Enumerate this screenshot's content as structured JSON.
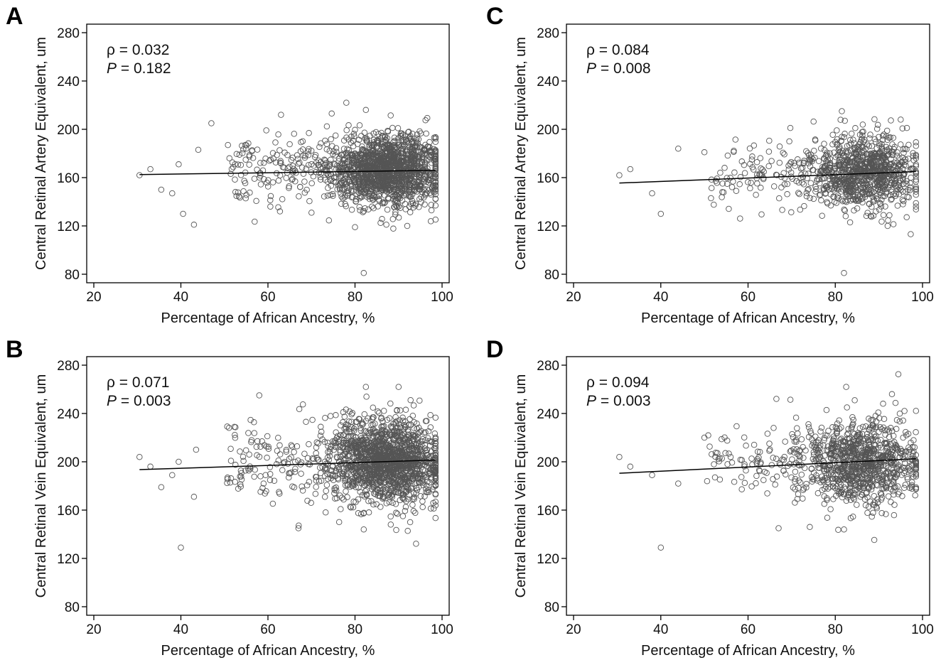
{
  "chart_data": [
    {
      "panel": "A",
      "type": "scatter",
      "xlabel": "Percentage of African Ancestry, %",
      "ylabel": "Central Retinal Artery Equivalent, um",
      "xlim": [
        20,
        100
      ],
      "ylim": [
        80,
        280
      ],
      "xticks": [
        20,
        40,
        60,
        80,
        100
      ],
      "yticks": [
        80,
        120,
        160,
        200,
        240,
        280
      ],
      "annotation": {
        "rho": "ρ = 0.032",
        "p_label": "P",
        "p_rest": " = 0.182"
      },
      "fit_line": {
        "x": [
          30.5,
          98.5
        ],
        "y": [
          162.5,
          166.0
        ]
      },
      "point_cloud": {
        "approx_n": 1600,
        "x_center": 87,
        "x_min": 30.5,
        "x_max": 98.5,
        "y_center": 166,
        "y_sd": 15
      },
      "outliers": [
        {
          "x": 30.5,
          "y": 162
        },
        {
          "x": 33,
          "y": 167
        },
        {
          "x": 35.5,
          "y": 150
        },
        {
          "x": 38,
          "y": 147
        },
        {
          "x": 39.5,
          "y": 171
        },
        {
          "x": 40.5,
          "y": 130
        },
        {
          "x": 43,
          "y": 121
        },
        {
          "x": 44,
          "y": 183
        },
        {
          "x": 47,
          "y": 205
        },
        {
          "x": 55,
          "y": 184
        },
        {
          "x": 63,
          "y": 212
        },
        {
          "x": 82,
          "y": 81
        },
        {
          "x": 78,
          "y": 222
        },
        {
          "x": 82.5,
          "y": 216
        },
        {
          "x": 80,
          "y": 119
        },
        {
          "x": 92,
          "y": 120
        }
      ]
    },
    {
      "panel": "B",
      "type": "scatter",
      "xlabel": "Percentage of African Ancestry, %",
      "ylabel": "Central Retinal Vein Equivalent, um",
      "xlim": [
        20,
        100
      ],
      "ylim": [
        80,
        280
      ],
      "xticks": [
        20,
        40,
        60,
        80,
        100
      ],
      "yticks": [
        80,
        120,
        160,
        200,
        240,
        280
      ],
      "annotation": {
        "rho": "ρ = 0.071",
        "p_label": "P",
        "p_rest": " = 0.003"
      },
      "fit_line": {
        "x": [
          30.5,
          98.5
        ],
        "y": [
          193.5,
          201.5
        ]
      },
      "point_cloud": {
        "approx_n": 1600,
        "x_center": 87,
        "x_min": 30.5,
        "x_max": 98.5,
        "y_center": 200,
        "y_sd": 17
      },
      "outliers": [
        {
          "x": 30.5,
          "y": 204
        },
        {
          "x": 33,
          "y": 196
        },
        {
          "x": 35.5,
          "y": 179
        },
        {
          "x": 38,
          "y": 189
        },
        {
          "x": 39.5,
          "y": 200
        },
        {
          "x": 40,
          "y": 129
        },
        {
          "x": 43,
          "y": 171
        },
        {
          "x": 43.5,
          "y": 210
        },
        {
          "x": 58,
          "y": 255
        },
        {
          "x": 67,
          "y": 145
        },
        {
          "x": 82.5,
          "y": 262
        },
        {
          "x": 82,
          "y": 144
        },
        {
          "x": 90,
          "y": 262
        },
        {
          "x": 91,
          "y": 155
        }
      ]
    },
    {
      "panel": "C",
      "type": "scatter",
      "xlabel": "Percentage of African Ancestry, %",
      "ylabel": "Central Retinal Artery Equivalent, um",
      "xlim": [
        20,
        100
      ],
      "ylim": [
        80,
        280
      ],
      "xticks": [
        20,
        40,
        60,
        80,
        100
      ],
      "yticks": [
        80,
        120,
        160,
        200,
        240,
        280
      ],
      "annotation": {
        "rho": "ρ = 0.084",
        "p_label": "P",
        "p_rest": " = 0.008"
      },
      "fit_line": {
        "x": [
          30.5,
          98.5
        ],
        "y": [
          155.5,
          165.0
        ]
      },
      "point_cloud": {
        "approx_n": 1000,
        "x_center": 86,
        "x_min": 30.5,
        "x_max": 98.5,
        "y_center": 164,
        "y_sd": 15
      },
      "outliers": [
        {
          "x": 30.5,
          "y": 162
        },
        {
          "x": 33,
          "y": 167
        },
        {
          "x": 38,
          "y": 147
        },
        {
          "x": 40,
          "y": 130
        },
        {
          "x": 44,
          "y": 184
        },
        {
          "x": 50,
          "y": 181
        },
        {
          "x": 82,
          "y": 81
        },
        {
          "x": 81.5,
          "y": 215
        },
        {
          "x": 95,
          "y": 208
        },
        {
          "x": 92,
          "y": 120
        }
      ]
    },
    {
      "panel": "D",
      "type": "scatter",
      "xlabel": "Percentage of African Ancestry, %",
      "ylabel": "Central Retinal Vein Equivalent, um",
      "xlim": [
        20,
        100
      ],
      "ylim": [
        80,
        280
      ],
      "xticks": [
        20,
        40,
        60,
        80,
        100
      ],
      "yticks": [
        80,
        120,
        160,
        200,
        240,
        280
      ],
      "annotation": {
        "rho": "ρ = 0.094",
        "p_label": "P",
        "p_rest": " = 0.003"
      },
      "fit_line": {
        "x": [
          30.5,
          98.5
        ],
        "y": [
          190.5,
          202.5
        ]
      },
      "point_cloud": {
        "approx_n": 1000,
        "x_center": 86,
        "x_min": 30.5,
        "x_max": 98.5,
        "y_center": 199,
        "y_sd": 17
      },
      "outliers": [
        {
          "x": 30.5,
          "y": 204
        },
        {
          "x": 33,
          "y": 196
        },
        {
          "x": 38,
          "y": 189
        },
        {
          "x": 40,
          "y": 129
        },
        {
          "x": 44,
          "y": 182
        },
        {
          "x": 50,
          "y": 220
        },
        {
          "x": 67,
          "y": 145
        },
        {
          "x": 82.5,
          "y": 262
        },
        {
          "x": 82,
          "y": 144
        },
        {
          "x": 93,
          "y": 256
        }
      ]
    }
  ],
  "colors": {
    "marker": "#555555",
    "fit_line": "#000000",
    "axis": "#000000"
  }
}
